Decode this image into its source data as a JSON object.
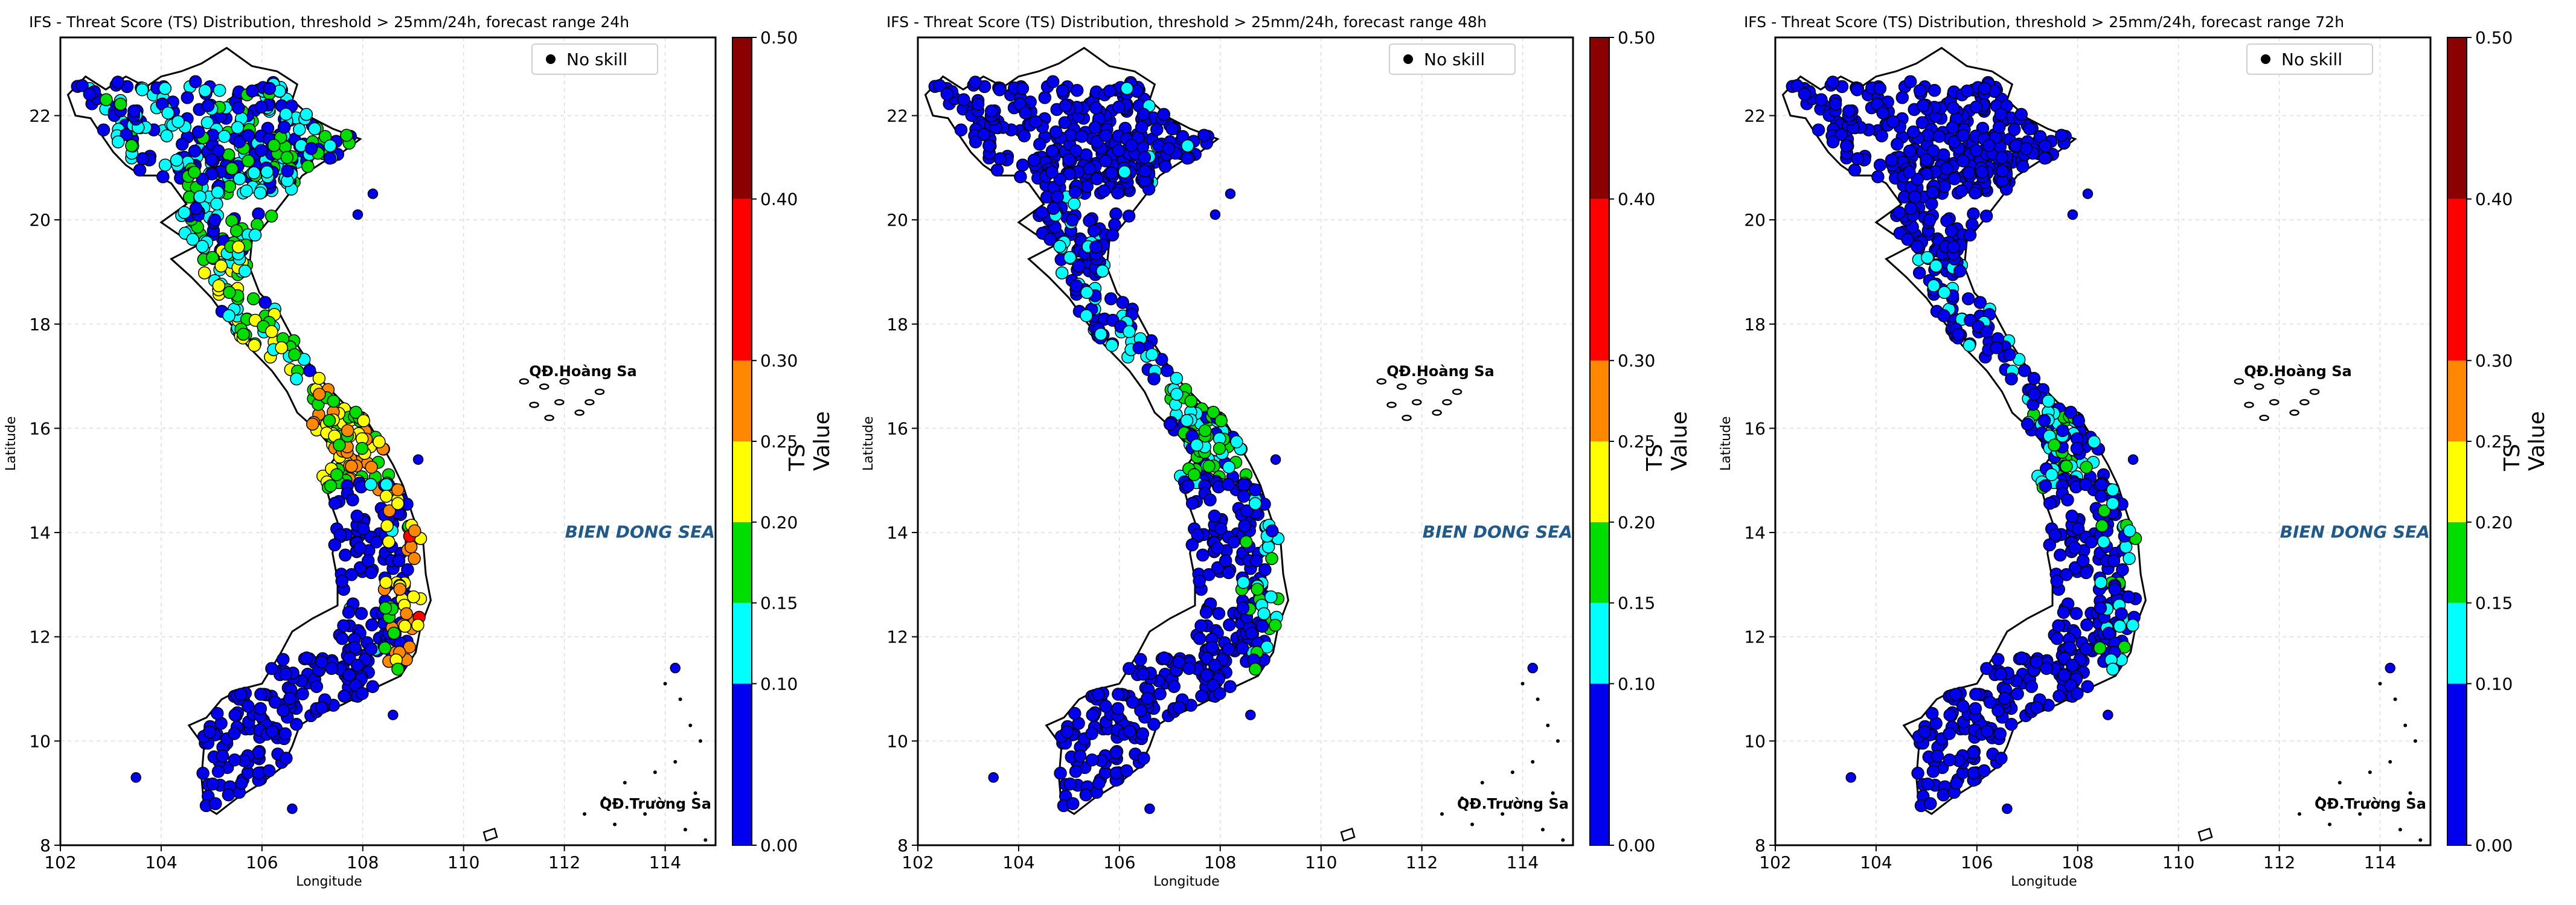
{
  "panels": [
    {
      "title": "IFS - Threat Score (TS) Distribution, threshold > 25mm/24h, forecast range 24h",
      "skill": "high"
    },
    {
      "title": "IFS - Threat Score (TS) Distribution, threshold > 25mm/24h, forecast range 48h",
      "skill": "mid"
    },
    {
      "title": "IFS - Threat Score (TS) Distribution, threshold > 25mm/24h, forecast range 72h",
      "skill": "low"
    }
  ],
  "axes": {
    "xlabel": "Longitude",
    "ylabel": "Latitude",
    "xticks": [
      "102",
      "104",
      "106",
      "108",
      "110",
      "112",
      "114"
    ],
    "yticks": [
      "8",
      "10",
      "12",
      "14",
      "16",
      "18",
      "20",
      "22"
    ],
    "xlim": [
      102,
      115
    ],
    "ylim": [
      8,
      23.5
    ]
  },
  "legend": {
    "label": "No skill"
  },
  "colorbar": {
    "title": "TS Value",
    "ticks": [
      "0.00",
      "0.10",
      "0.15",
      "0.20",
      "0.25",
      "0.30",
      "0.40",
      "0.50"
    ],
    "colors": [
      "#0000ee",
      "#00ffff",
      "#00dd00",
      "#ffff00",
      "#ff8800",
      "#ff0000",
      "#8b0000"
    ]
  },
  "annotations": {
    "paracel": "QĐ.Hoàng Sa",
    "spratly": "QĐ.Trường Sa",
    "sea": "BIEN DONG SEA"
  }
}
